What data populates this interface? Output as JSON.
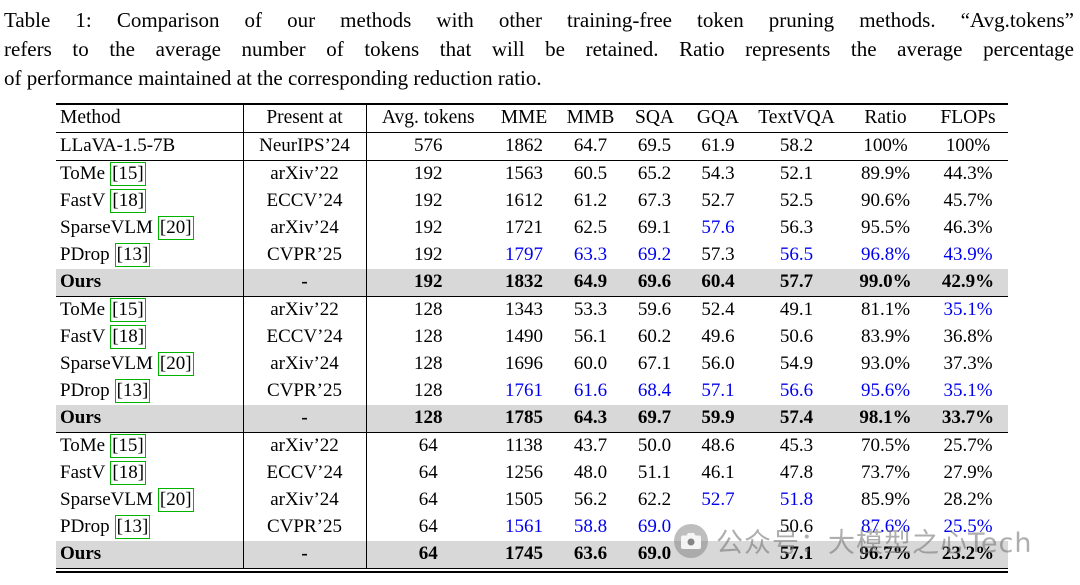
{
  "caption": {
    "lines": [
      "Table 1: Comparison of our methods with other training-free token pruning methods. “Avg.tokens”",
      "refers to the average number of tokens that will be retained. Ratio represents the average percentage",
      "of performance maintained at the corresponding reduction ratio."
    ]
  },
  "table": {
    "columns": [
      {
        "key": "method",
        "label": "Method"
      },
      {
        "key": "present-at",
        "label": "Present at"
      },
      {
        "key": "avg-tokens",
        "label": "Avg. tokens"
      },
      {
        "key": "mme",
        "label": "MME"
      },
      {
        "key": "mmb",
        "label": "MMB"
      },
      {
        "key": "sqa",
        "label": "SQA"
      },
      {
        "key": "gqa",
        "label": "GQA"
      },
      {
        "key": "textvqa",
        "label": "TextVQA"
      },
      {
        "key": "ratio",
        "label": "Ratio"
      },
      {
        "key": "flops",
        "label": "FLOPs"
      }
    ],
    "rows": [
      {
        "method": "LLaVA-1.5-7B",
        "cite": "",
        "venue": "NeurIPS’24",
        "tokens": "576",
        "values": [
          "1862",
          "64.7",
          "69.5",
          "61.9",
          "58.2",
          "100%",
          "100%"
        ],
        "colors": [
          "k",
          "k",
          "k",
          "k",
          "k",
          "k",
          "k"
        ],
        "ours": false,
        "sep": true
      },
      {
        "method": "ToMe",
        "cite": "[15]",
        "venue": "arXiv’22",
        "tokens": "192",
        "values": [
          "1563",
          "60.5",
          "65.2",
          "54.3",
          "52.1",
          "89.9%",
          "44.3%"
        ],
        "colors": [
          "k",
          "k",
          "k",
          "k",
          "k",
          "k",
          "k"
        ],
        "ours": false,
        "sep": false
      },
      {
        "method": "FastV",
        "cite": "[18]",
        "venue": "ECCV’24",
        "tokens": "192",
        "values": [
          "1612",
          "61.2",
          "67.3",
          "52.7",
          "52.5",
          "90.6%",
          "45.7%"
        ],
        "colors": [
          "k",
          "k",
          "k",
          "k",
          "k",
          "k",
          "k"
        ],
        "ours": false,
        "sep": false
      },
      {
        "method": "SparseVLM",
        "cite": "[20]",
        "venue": "arXiv’24",
        "tokens": "192",
        "values": [
          "1721",
          "62.5",
          "69.1",
          "57.6",
          "56.3",
          "95.5%",
          "46.3%"
        ],
        "colors": [
          "k",
          "k",
          "k",
          "b",
          "k",
          "k",
          "k"
        ],
        "ours": false,
        "sep": false
      },
      {
        "method": "PDrop",
        "cite": "[13]",
        "venue": "CVPR’25",
        "tokens": "192",
        "values": [
          "1797",
          "63.3",
          "69.2",
          "57.3",
          "56.5",
          "96.8%",
          "43.9%"
        ],
        "colors": [
          "b",
          "b",
          "b",
          "k",
          "b",
          "b",
          "b"
        ],
        "ours": false,
        "sep": false
      },
      {
        "method": "Ours",
        "cite": "",
        "venue": "-",
        "tokens": "192",
        "values": [
          "1832",
          "64.9",
          "69.6",
          "60.4",
          "57.7",
          "99.0%",
          "42.9%"
        ],
        "colors": [
          "k",
          "k",
          "k",
          "k",
          "k",
          "k",
          "k"
        ],
        "ours": true,
        "sep": true
      },
      {
        "method": "ToMe",
        "cite": "[15]",
        "venue": "arXiv’22",
        "tokens": "128",
        "values": [
          "1343",
          "53.3",
          "59.6",
          "52.4",
          "49.1",
          "81.1%",
          "35.1%"
        ],
        "colors": [
          "k",
          "k",
          "k",
          "k",
          "k",
          "k",
          "b"
        ],
        "ours": false,
        "sep": false
      },
      {
        "method": "FastV",
        "cite": "[18]",
        "venue": "ECCV’24",
        "tokens": "128",
        "values": [
          "1490",
          "56.1",
          "60.2",
          "49.6",
          "50.6",
          "83.9%",
          "36.8%"
        ],
        "colors": [
          "k",
          "k",
          "k",
          "k",
          "k",
          "k",
          "k"
        ],
        "ours": false,
        "sep": false
      },
      {
        "method": "SparseVLM",
        "cite": "[20]",
        "venue": "arXiv’24",
        "tokens": "128",
        "values": [
          "1696",
          "60.0",
          "67.1",
          "56.0",
          "54.9",
          "93.0%",
          "37.3%"
        ],
        "colors": [
          "k",
          "k",
          "k",
          "k",
          "k",
          "k",
          "k"
        ],
        "ours": false,
        "sep": false
      },
      {
        "method": "PDrop",
        "cite": "[13]",
        "venue": "CVPR’25",
        "tokens": "128",
        "values": [
          "1761",
          "61.6",
          "68.4",
          "57.1",
          "56.6",
          "95.6%",
          "35.1%"
        ],
        "colors": [
          "b",
          "b",
          "b",
          "b",
          "b",
          "b",
          "b"
        ],
        "ours": false,
        "sep": false
      },
      {
        "method": "Ours",
        "cite": "",
        "venue": "-",
        "tokens": "128",
        "values": [
          "1785",
          "64.3",
          "69.7",
          "59.9",
          "57.4",
          "98.1%",
          "33.7%"
        ],
        "colors": [
          "k",
          "k",
          "k",
          "k",
          "k",
          "k",
          "k"
        ],
        "ours": true,
        "sep": true
      },
      {
        "method": "ToMe",
        "cite": "[15]",
        "venue": "arXiv’22",
        "tokens": "64",
        "values": [
          "1138",
          "43.7",
          "50.0",
          "48.6",
          "45.3",
          "70.5%",
          "25.7%"
        ],
        "colors": [
          "k",
          "k",
          "k",
          "k",
          "k",
          "k",
          "k"
        ],
        "ours": false,
        "sep": false
      },
      {
        "method": "FastV",
        "cite": "[18]",
        "venue": "ECCV’24",
        "tokens": "64",
        "values": [
          "1256",
          "48.0",
          "51.1",
          "46.1",
          "47.8",
          "73.7%",
          "27.9%"
        ],
        "colors": [
          "k",
          "k",
          "k",
          "k",
          "k",
          "k",
          "k"
        ],
        "ours": false,
        "sep": false
      },
      {
        "method": "SparseVLM",
        "cite": "[20]",
        "venue": "arXiv’24",
        "tokens": "64",
        "values": [
          "1505",
          "56.2",
          "62.2",
          "52.7",
          "51.8",
          "85.9%",
          "28.2%"
        ],
        "colors": [
          "k",
          "k",
          "k",
          "b",
          "b",
          "k",
          "k"
        ],
        "ours": false,
        "sep": false
      },
      {
        "method": "PDrop",
        "cite": "[13]",
        "venue": "CVPR’25",
        "tokens": "64",
        "values": [
          "1561",
          "58.8",
          "69.0",
          "",
          "50.6",
          "87.6%",
          "25.5%"
        ],
        "colors": [
          "b",
          "b",
          "b",
          "k",
          "k",
          "b",
          "b"
        ],
        "ours": false,
        "sep": false
      },
      {
        "method": "Ours",
        "cite": "",
        "venue": "-",
        "tokens": "64",
        "values": [
          "1745",
          "63.6",
          "69.0",
          "",
          "57.1",
          "96.7%",
          "23.2%"
        ],
        "colors": [
          "k",
          "k",
          "k",
          "k",
          "k",
          "k",
          "k"
        ],
        "ours": true,
        "sep": true
      }
    ]
  },
  "watermark": {
    "text": "公众号：大模型之心Tech",
    "icon": "camera-icon"
  },
  "colors": {
    "second_best_blue": "#0000ee",
    "ours_row_highlight": "#d8d8d8",
    "citation_green": "#00b400"
  }
}
